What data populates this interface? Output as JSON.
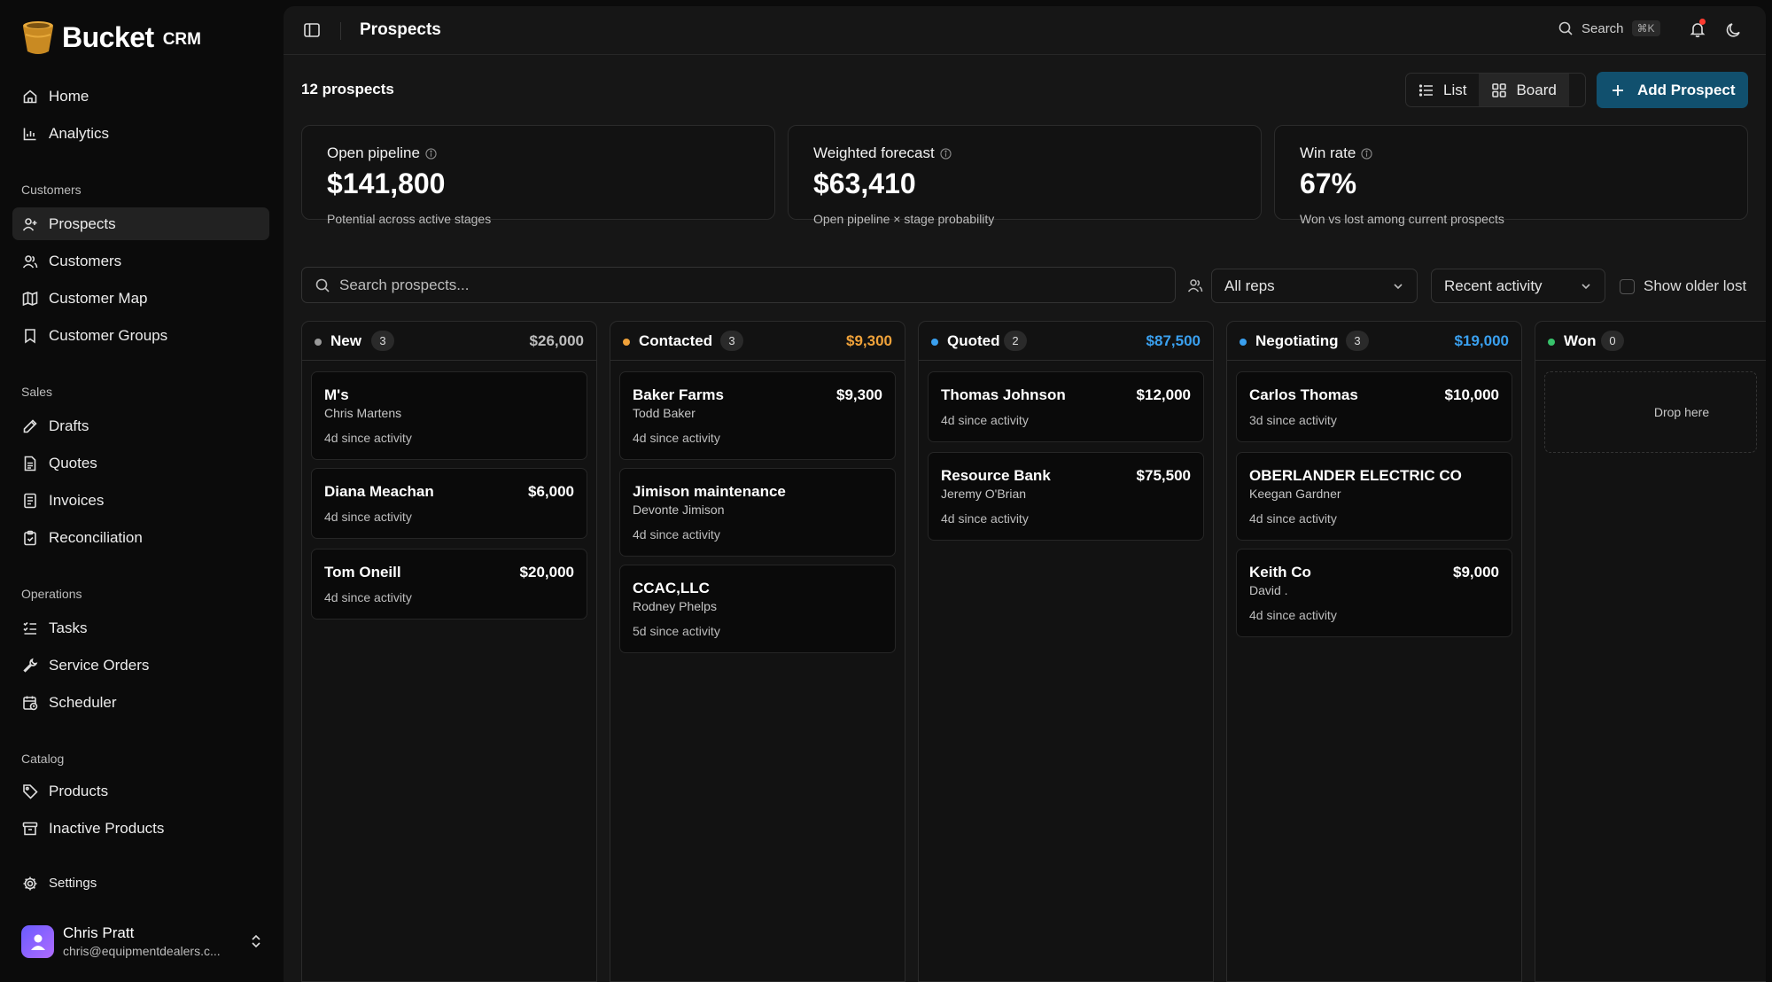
{
  "brand": {
    "name": "Bucket",
    "suffix": "CRM"
  },
  "nav": {
    "home": "Home",
    "analytics": "Analytics",
    "section_customers": "Customers",
    "prospects": "Prospects",
    "customers": "Customers",
    "customer_map": "Customer Map",
    "customer_groups": "Customer Groups",
    "section_sales": "Sales",
    "drafts": "Drafts",
    "quotes": "Quotes",
    "invoices": "Invoices",
    "reconciliation": "Reconciliation",
    "section_operations": "Operations",
    "tasks": "Tasks",
    "service_orders": "Service Orders",
    "scheduler": "Scheduler",
    "section_catalog": "Catalog",
    "products": "Products",
    "inactive_products": "Inactive Products",
    "settings": "Settings"
  },
  "user": {
    "name": "Chris Pratt",
    "email": "chris@equipmentdealers.c..."
  },
  "header": {
    "title": "Prospects",
    "search_label": "Search",
    "search_shortcut": "⌘K"
  },
  "toolbar": {
    "count": "12 prospects",
    "list_label": "List",
    "board_label": "Board",
    "add_label": "Add Prospect"
  },
  "stats": [
    {
      "title": "Open pipeline",
      "value": "$141,800",
      "sub": "Potential across active stages"
    },
    {
      "title": "Weighted forecast",
      "value": "$63,410",
      "sub": "Open pipeline × stage probability"
    },
    {
      "title": "Win rate",
      "value": "67%",
      "sub": "Won vs lost among current prospects"
    }
  ],
  "filters": {
    "search_placeholder": "Search prospects...",
    "reps": "All reps",
    "sort": "Recent activity",
    "show_older": "Show older lost"
  },
  "columns": [
    {
      "name": "New",
      "count": "3",
      "total": "$26,000",
      "dot": "#9a9a9a",
      "total_color": "#bdbdbd",
      "cards": [
        {
          "title": "M's",
          "amount": "",
          "contact": "Chris Martens",
          "activity": "4d since activity"
        },
        {
          "title": "Diana Meachan",
          "amount": "$6,000",
          "contact": "",
          "activity": "4d since activity"
        },
        {
          "title": "Tom Oneill",
          "amount": "$20,000",
          "contact": "",
          "activity": "4d since activity"
        }
      ]
    },
    {
      "name": "Contacted",
      "count": "3",
      "total": "$9,300",
      "dot": "#f0a23a",
      "total_color": "#f0a23a",
      "cards": [
        {
          "title": "Baker Farms",
          "amount": "$9,300",
          "contact": "Todd Baker",
          "activity": "4d since activity"
        },
        {
          "title": "Jimison maintenance",
          "amount": "",
          "contact": "Devonte Jimison",
          "activity": "4d since activity"
        },
        {
          "title": "CCAC,LLC",
          "amount": "",
          "contact": "Rodney Phelps",
          "activity": "5d since activity"
        }
      ]
    },
    {
      "name": "Quoted",
      "count": "2",
      "total": "$87,500",
      "dot": "#3aa0ef",
      "total_color": "#3aa0ef",
      "cards": [
        {
          "title": "Thomas Johnson",
          "amount": "$12,000",
          "contact": "",
          "activity": "4d since activity"
        },
        {
          "title": "Resource Bank",
          "amount": "$75,500",
          "contact": "Jeremy O'Brian",
          "activity": "4d since activity"
        }
      ]
    },
    {
      "name": "Negotiating",
      "count": "3",
      "total": "$19,000",
      "dot": "#3aa0ef",
      "total_color": "#3aa0ef",
      "cards": [
        {
          "title": "Carlos Thomas",
          "amount": "$10,000",
          "contact": "",
          "activity": "3d since activity"
        },
        {
          "title": "OBERLANDER ELECTRIC CO",
          "amount": "",
          "contact": "Keegan Gardner",
          "activity": "4d since activity"
        },
        {
          "title": "Keith Co",
          "amount": "$9,000",
          "contact": "David .",
          "activity": "4d since activity"
        }
      ]
    },
    {
      "name": "Won",
      "count": "0",
      "total": "",
      "dot": "#37c26b",
      "total_color": "#37c26b",
      "drop_label": "Drop here",
      "cards": []
    }
  ]
}
